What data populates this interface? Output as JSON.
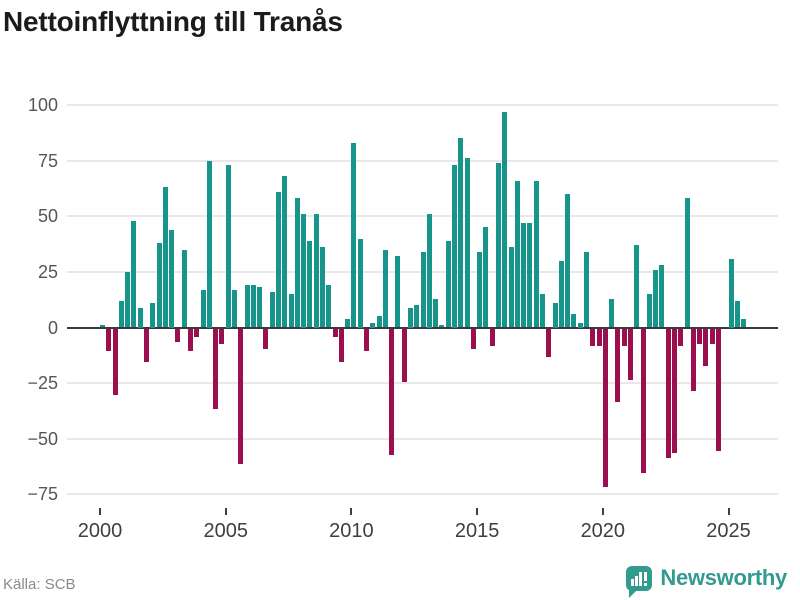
{
  "title": "Nettoinflyttning till Tranås",
  "source": "Källa: SCB",
  "branding": {
    "name": "Newsworthy"
  },
  "colors": {
    "positive": "#17948b",
    "negative": "#9b0f4e",
    "grid": "#e8e8e8",
    "zero_line": "#3a3a3a",
    "title_text": "#1b1b1b",
    "axis_text": "#565656",
    "source_text": "#8a8a8a",
    "brand": "#339a90"
  },
  "chart_data": {
    "type": "bar",
    "title": "Nettoinflyttning till Tranås",
    "xlabel": "",
    "ylabel": "",
    "frequency": "quarterly",
    "start_period": "2000Q1",
    "end_period": "2025Q3",
    "values": [
      1,
      -10,
      -30,
      12,
      25,
      48,
      9,
      -15,
      11,
      38,
      63,
      44,
      -6,
      35,
      -10,
      -4,
      17,
      75,
      -36,
      -7,
      73,
      17,
      -61,
      19,
      19,
      18,
      -9,
      16,
      61,
      68,
      15,
      58,
      51,
      39,
      51,
      36,
      19,
      -4,
      -15,
      4,
      83,
      40,
      -10,
      2,
      5,
      35,
      -57,
      32,
      -24,
      9,
      10,
      34,
      51,
      13,
      1,
      39,
      73,
      85,
      76,
      -9,
      34,
      45,
      -8,
      74,
      97,
      36,
      66,
      47,
      47,
      66,
      15,
      -13,
      11,
      30,
      60,
      6,
      2,
      34,
      -8,
      -8,
      -71,
      13,
      -33,
      -8,
      -23,
      37,
      -65,
      15,
      26,
      28,
      -58,
      -56,
      -8,
      58,
      -28,
      -7,
      -17,
      -7,
      -55,
      0,
      31,
      12,
      4
    ],
    "yticks": [
      100,
      75,
      50,
      25,
      0,
      -25,
      -50,
      -75
    ],
    "xticks": [
      2000,
      2005,
      2010,
      2015,
      2020,
      2025
    ],
    "ylim": [
      -75,
      100
    ],
    "grid": true,
    "legend": "none"
  }
}
